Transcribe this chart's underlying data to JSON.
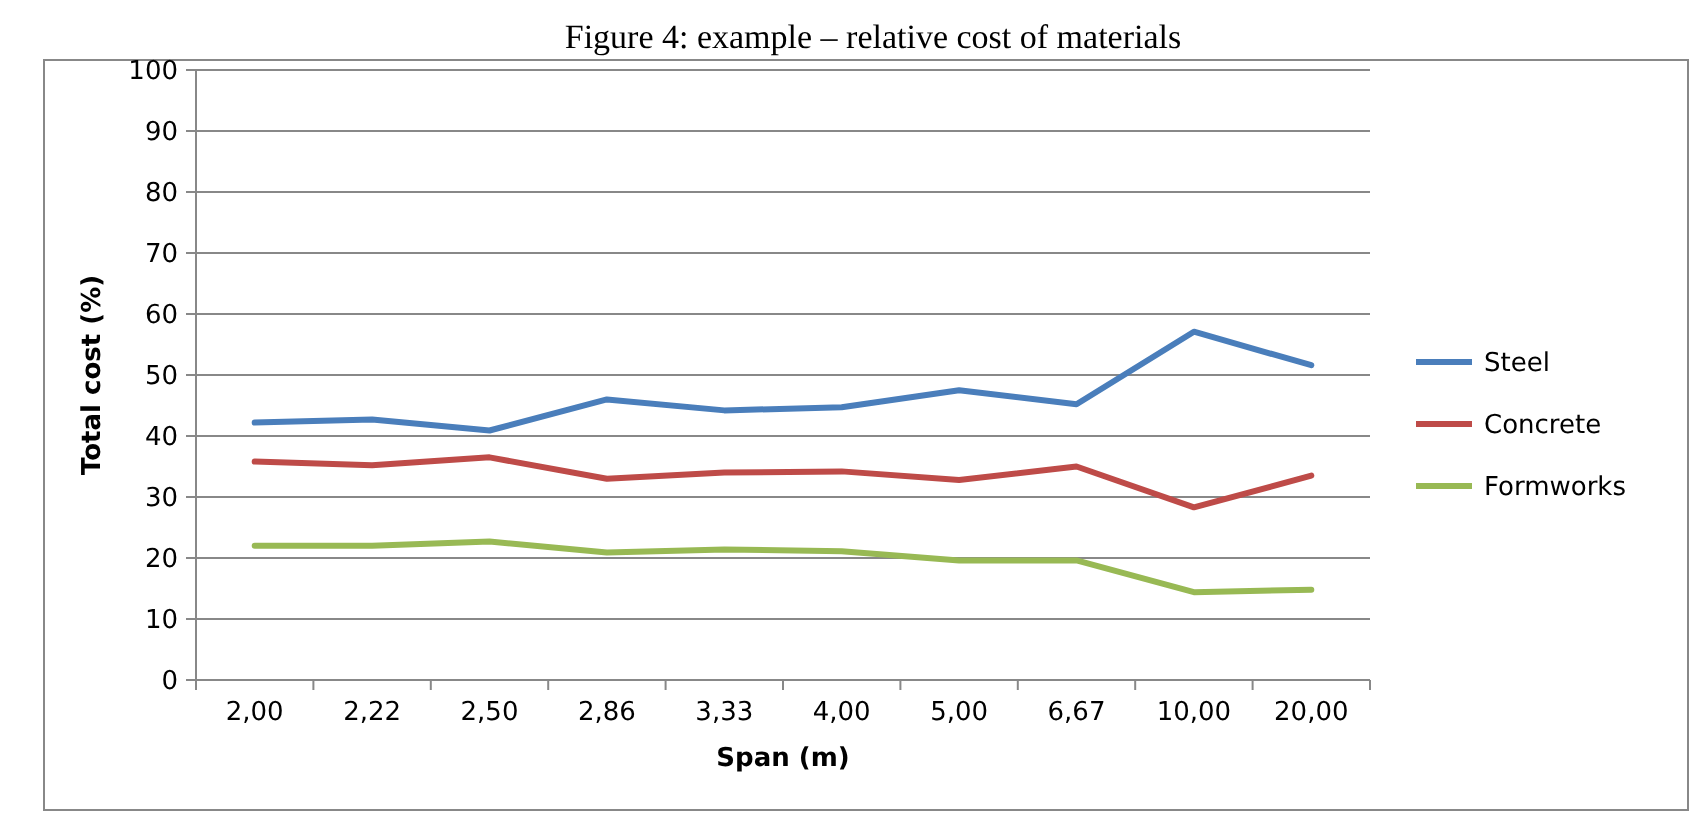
{
  "chart_data": {
    "type": "line",
    "title": "Figure 4: example – relative cost of materials",
    "xlabel": "Span (m)",
    "ylabel": "Total cost (%)",
    "categories": [
      "2,00",
      "2,22",
      "2,50",
      "2,86",
      "3,33",
      "4,00",
      "5,00",
      "6,67",
      "10,00",
      "20,00"
    ],
    "series": [
      {
        "name": "Steel",
        "color": "#4a7ebb",
        "values": [
          42.2,
          42.7,
          40.9,
          46,
          44.2,
          44.7,
          47.5,
          45.2,
          57.1,
          51.6
        ]
      },
      {
        "name": "Concrete",
        "color": "#be4b48",
        "values": [
          35.8,
          35.2,
          36.5,
          33,
          34,
          34.2,
          32.8,
          35,
          28.3,
          33.5
        ]
      },
      {
        "name": "Formworks",
        "color": "#98b954",
        "values": [
          22,
          22,
          22.7,
          20.9,
          21.4,
          21.1,
          19.6,
          19.6,
          14.4,
          14.8
        ]
      }
    ],
    "ylim": [
      0,
      100
    ],
    "yticks": [
      0,
      10,
      20,
      30,
      40,
      50,
      60,
      70,
      80,
      90,
      100
    ],
    "grid": "y",
    "legend": "right",
    "marker": "none",
    "line_style": "solid"
  }
}
